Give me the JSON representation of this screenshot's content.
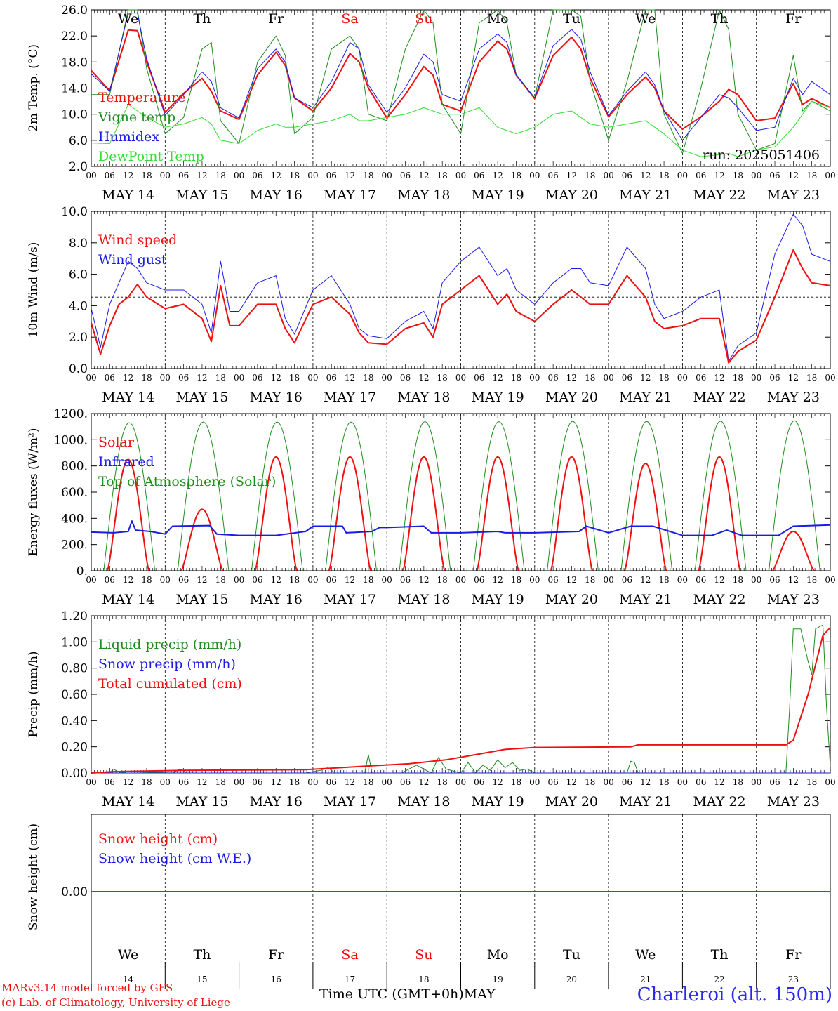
{
  "footer": {
    "credit_line1": "MARv3.14 model forced by GFS",
    "credit_line2": "(c) Lab. of Climatology, University of Liege",
    "x_axis_title": "Time UTC (GMT+0h)",
    "month": "MAY",
    "location": "Charleroi (alt. 150m)"
  },
  "colors": {
    "red": "#ee1111",
    "blue": "#1a1ae6",
    "dark_green": "#1e8c1e",
    "light_green": "#33dd33",
    "weekend_label": "#ee1111"
  },
  "chart_data": [
    {
      "type": "line",
      "id": "temperature",
      "ylabel": "2m Temp. (°C)",
      "ylim": [
        2.0,
        26.0
      ],
      "yticks": [
        "2.0",
        "6.0",
        "10.0",
        "14.0",
        "18.0",
        "22.0",
        "26.0"
      ],
      "day_labels": [
        "We",
        "Th",
        "Fr",
        "Sa",
        "Su",
        "Mo",
        "Tu",
        "We",
        "Th",
        "Fr"
      ],
      "date_labels": [
        "MAY 14",
        "MAY 15",
        "MAY 16",
        "MAY 17",
        "MAY 18",
        "MAY 19",
        "MAY 20",
        "MAY 21",
        "MAY 22",
        "MAY 23"
      ],
      "hour_ticks": [
        "00",
        "06",
        "12",
        "18"
      ],
      "annotation": "run: 2025051406",
      "x_days": [
        0,
        0.25,
        0.5,
        0.625,
        0.75,
        1,
        1.25,
        1.5,
        1.625,
        1.75,
        2,
        2.25,
        2.5,
        2.625,
        2.75,
        3,
        3.25,
        3.5,
        3.625,
        3.75,
        4,
        4.25,
        4.5,
        4.625,
        4.75,
        5,
        5.25,
        5.5,
        5.625,
        5.75,
        6,
        6.25,
        6.5,
        6.625,
        6.75,
        7,
        7.25,
        7.5,
        7.625,
        7.75,
        8,
        8.25,
        8.5,
        8.625,
        8.75,
        9,
        9.25,
        9.5,
        9.625,
        9.75,
        10
      ],
      "series": [
        {
          "name": "Temperature",
          "color": "#ee1111",
          "width": 2,
          "values": [
            16.7,
            13.6,
            22.9,
            22.8,
            18,
            10.3,
            13.2,
            15.5,
            13.5,
            10.5,
            9.2,
            16,
            19.5,
            17.5,
            12.5,
            10.5,
            14,
            19.3,
            18,
            14,
            9.4,
            13,
            17.3,
            16,
            11.5,
            10.5,
            18,
            21.2,
            20,
            16,
            12.4,
            19,
            21.8,
            20,
            15.5,
            9.6,
            13,
            15.7,
            14,
            10.5,
            7.7,
            9.6,
            12,
            13.8,
            13,
            9,
            9.4,
            14.7,
            11.5,
            12.4,
            11
          ]
        },
        {
          "name": "Vigne temp",
          "color": "#1e8c1e",
          "width": 1,
          "values": [
            13,
            13,
            27,
            27,
            17,
            7,
            9.5,
            20,
            21,
            9,
            5.5,
            18,
            22,
            19,
            7,
            9.5,
            20,
            22,
            20,
            10,
            9,
            20,
            27,
            24,
            11.5,
            7,
            24,
            27,
            24,
            16,
            12.5,
            26,
            27,
            25,
            15,
            6,
            15,
            27,
            26,
            10,
            4,
            14,
            26,
            23,
            10,
            4.5,
            5.5,
            19,
            10.5,
            12,
            10.5
          ]
        },
        {
          "name": "Humidex",
          "color": "#1a1ae6",
          "width": 1,
          "values": [
            16.2,
            13.5,
            25.5,
            25.5,
            18.5,
            9.8,
            13,
            16.5,
            15,
            11,
            9.4,
            17,
            20,
            18,
            12.5,
            11,
            15,
            21,
            20,
            14.5,
            10.3,
            14,
            19.2,
            18,
            13,
            12,
            20,
            22.3,
            21,
            16,
            12.5,
            20.5,
            23,
            21.5,
            16.5,
            9.8,
            13.5,
            16.5,
            14.5,
            10.5,
            6,
            9.5,
            13,
            12.5,
            11,
            7.5,
            8,
            15.5,
            13,
            15,
            13
          ]
        },
        {
          "name": "DewPoint Temp",
          "color": "#33dd33",
          "width": 1,
          "values": [
            5.6,
            5.5,
            11.5,
            10.5,
            9.5,
            8,
            8.5,
            9.5,
            8.5,
            6,
            5.5,
            7.5,
            8.5,
            8,
            8,
            8.5,
            9,
            10,
            9,
            9,
            9.5,
            10,
            11,
            10.5,
            10,
            10,
            11,
            8,
            7.5,
            7,
            8,
            10,
            10.5,
            9.5,
            8.5,
            8,
            8.5,
            9,
            8,
            7,
            4.5,
            3.5,
            3.8,
            4,
            3.5,
            4.5,
            5,
            8,
            10,
            12,
            11
          ]
        }
      ],
      "legend_placement": "left",
      "grid": "vertical dashed lines at day boundaries"
    },
    {
      "type": "line",
      "id": "wind",
      "ylabel": "10m Wind (m/s)",
      "ylim": [
        0.0,
        11.0
      ],
      "yticks": [
        "0.0",
        "2.0",
        "4.0",
        "6.0",
        "8.0",
        "10.0"
      ],
      "date_labels": [
        "MAY 14",
        "MAY 15",
        "MAY 16",
        "MAY 17",
        "MAY 18",
        "MAY 19",
        "MAY 20",
        "MAY 21",
        "MAY 22",
        "MAY 23"
      ],
      "reference_line": 5.0,
      "x_days": [
        0,
        0.125,
        0.25,
        0.375,
        0.5,
        0.625,
        0.75,
        1,
        1.25,
        1.5,
        1.625,
        1.75,
        1.875,
        2,
        2.25,
        2.5,
        2.625,
        2.75,
        3,
        3.25,
        3.5,
        3.625,
        3.75,
        4,
        4.25,
        4.5,
        4.625,
        4.75,
        5,
        5.25,
        5.5,
        5.625,
        5.75,
        6,
        6.25,
        6.5,
        6.625,
        6.75,
        7,
        7.25,
        7.5,
        7.625,
        7.75,
        8,
        8.25,
        8.5,
        8.625,
        8.75,
        9,
        9.25,
        9.5,
        9.625,
        9.75,
        10
      ],
      "series": [
        {
          "name": "Wind speed",
          "color": "#ee1111",
          "width": 2,
          "values": [
            3.2,
            1.0,
            3.0,
            4.5,
            5.0,
            5.9,
            5.0,
            4.2,
            4.5,
            3.5,
            1.9,
            5.8,
            3.0,
            3.0,
            4.5,
            4.5,
            2.8,
            1.8,
            4.5,
            5.0,
            3.8,
            2.5,
            1.8,
            1.7,
            2.8,
            3.2,
            2.2,
            4.5,
            5.5,
            6.5,
            4.5,
            5.2,
            4.0,
            3.3,
            4.5,
            5.5,
            5.0,
            4.5,
            4.5,
            6.5,
            5.0,
            3.3,
            2.8,
            3.0,
            3.5,
            3.5,
            0.4,
            1.2,
            2.0,
            5.0,
            8.3,
            7.0,
            6.0,
            5.8
          ]
        },
        {
          "name": "Wind gust",
          "color": "#1a1ae6",
          "width": 1,
          "values": [
            4.2,
            1.5,
            4.5,
            6.0,
            7.5,
            7.0,
            6.0,
            5.5,
            5.5,
            4.5,
            2.5,
            7.5,
            4.0,
            4.0,
            6.0,
            6.5,
            3.5,
            2.4,
            5.5,
            6.5,
            4.5,
            2.8,
            2.3,
            2.1,
            3.3,
            4.0,
            2.8,
            6.0,
            7.5,
            8.5,
            6.5,
            7.0,
            5.5,
            4.5,
            6.0,
            7.0,
            7.0,
            6.0,
            5.8,
            8.5,
            7.0,
            4.5,
            3.5,
            4.0,
            5.0,
            5.5,
            0.5,
            1.6,
            2.5,
            8.0,
            10.8,
            10.0,
            8.0,
            7.5
          ]
        }
      ],
      "legend_placement": "top-left"
    },
    {
      "type": "line",
      "id": "fluxes",
      "ylabel": "Energy fluxes (W/m²)",
      "ylim": [
        0,
        1200
      ],
      "yticks": [
        "0.",
        "200.",
        "400.",
        "600.",
        "800.",
        "1000.",
        "1200."
      ],
      "date_labels": [
        "MAY 14",
        "MAY 15",
        "MAY 16",
        "MAY 17",
        "MAY 18",
        "MAY 19",
        "MAY 20",
        "MAY 21",
        "MAY 22",
        "MAY 23"
      ],
      "series": [
        {
          "name": "Solar",
          "color": "#ee1111",
          "width": 2,
          "daily_peak": [
            850,
            470,
            870,
            870,
            870,
            870,
            870,
            820,
            870,
            300
          ]
        },
        {
          "name": "Infrared",
          "color": "#1a1ae6",
          "width": 2,
          "x_days": [
            0,
            0.3,
            0.5,
            0.55,
            0.6,
            0.8,
            1.0,
            1.1,
            1.6,
            1.7,
            2.0,
            2.5,
            2.9,
            3.0,
            3.4,
            3.45,
            3.8,
            3.9,
            4.0,
            4.5,
            4.6,
            5.0,
            5.5,
            5.6,
            6.0,
            6.6,
            6.7,
            7.0,
            7.3,
            7.6,
            8.0,
            8.4,
            8.6,
            8.8,
            9.0,
            9.3,
            9.5,
            10.0
          ],
          "values": [
            295,
            290,
            300,
            380,
            310,
            300,
            280,
            340,
            345,
            280,
            270,
            270,
            300,
            340,
            340,
            290,
            300,
            330,
            330,
            340,
            290,
            290,
            300,
            290,
            290,
            300,
            340,
            290,
            340,
            340,
            270,
            270,
            310,
            270,
            270,
            270,
            340,
            350
          ]
        },
        {
          "name": "Top of Atmosphere (Solar)",
          "color": "#1e8c1e",
          "width": 1,
          "daily_peak": [
            1130,
            1135,
            1135,
            1135,
            1138,
            1138,
            1140,
            1140,
            1142,
            1145
          ]
        }
      ],
      "legend_placement": "top-left"
    },
    {
      "type": "line",
      "id": "precip",
      "ylabel": "Precip (mm/h)",
      "ylim": [
        0.0,
        1.2
      ],
      "yticks": [
        "0.00",
        "0.20",
        "0.40",
        "0.60",
        "0.80",
        "1.00",
        "1.20"
      ],
      "date_labels": [
        "MAY 14",
        "MAY 15",
        "MAY 16",
        "MAY 17",
        "MAY 18",
        "MAY 19",
        "MAY 20",
        "MAY 21",
        "MAY 22",
        "MAY 23"
      ],
      "series": [
        {
          "name": "Liquid precip (mm/h)",
          "color": "#1e8c1e",
          "width": 1,
          "x_days": [
            0,
            0.25,
            0.3,
            0.4,
            0.5,
            1.1,
            1.2,
            1.3,
            2.9,
            3.1,
            3.2,
            3.3,
            3.7,
            3.75,
            3.8,
            4.2,
            4.4,
            4.6,
            4.7,
            4.8,
            5.0,
            5.1,
            5.2,
            5.3,
            5.4,
            5.5,
            5.6,
            5.7,
            5.8,
            5.9,
            6.0,
            7.25,
            7.3,
            7.35,
            7.4,
            9.4,
            9.45,
            9.5,
            9.6,
            9.7,
            9.75,
            9.8,
            9.9,
            9.95,
            10.0
          ],
          "values": [
            0,
            0,
            0.03,
            0,
            0.01,
            0,
            0.03,
            0,
            0,
            0.02,
            0.04,
            0,
            0,
            0.14,
            0,
            0,
            0.06,
            0,
            0.12,
            0.03,
            0,
            0.08,
            0,
            0.06,
            0.02,
            0.1,
            0.04,
            0.08,
            0.02,
            0.03,
            0,
            0,
            0.09,
            0.08,
            0,
            0,
            0.5,
            1.1,
            1.1,
            0.85,
            0.75,
            1.1,
            1.13,
            0.5,
            0.05
          ]
        },
        {
          "name": "Snow precip (mm/h)",
          "color": "#1a1ae6",
          "width": 1,
          "x_days": [
            0,
            10
          ],
          "values": [
            0,
            0
          ]
        },
        {
          "name": "Total cumulated (cm)",
          "color": "#ee1111",
          "width": 2,
          "x_days": [
            0,
            0.3,
            1.2,
            2.9,
            3.2,
            3.8,
            4.3,
            4.8,
            5.2,
            5.6,
            6.0,
            7.3,
            7.4,
            9.4,
            9.5,
            9.7,
            9.9,
            10.0
          ],
          "values": [
            0,
            0.01,
            0.02,
            0.025,
            0.035,
            0.055,
            0.07,
            0.1,
            0.14,
            0.18,
            0.195,
            0.2,
            0.215,
            0.215,
            0.25,
            0.6,
            1.05,
            1.11
          ]
        }
      ],
      "legend_placement": "top-left"
    },
    {
      "type": "line",
      "id": "snow",
      "ylabel": "Snow height (cm)",
      "yticks": [
        "0.00"
      ],
      "day_labels": [
        "We",
        "Th",
        "Fr",
        "Sa",
        "Su",
        "Mo",
        "Tu",
        "We",
        "Th",
        "Fr"
      ],
      "day_numbers": [
        "14",
        "15",
        "16",
        "17",
        "18",
        "19",
        "20",
        "21",
        "22",
        "23"
      ],
      "series": [
        {
          "name": "Snow height (cm)",
          "color": "#ee1111",
          "width": 2,
          "x_days": [
            0,
            10
          ],
          "values": [
            0,
            0
          ]
        },
        {
          "name": "Snow height (cm W.E.)",
          "color": "#1a1ae6",
          "width": 1,
          "x_days": [
            0,
            10
          ],
          "values": [
            0,
            0
          ]
        }
      ],
      "legend_placement": "top-left"
    }
  ]
}
